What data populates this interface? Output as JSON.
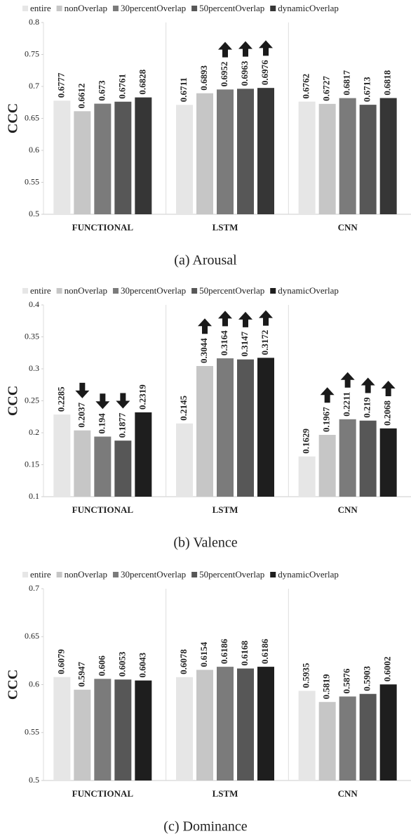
{
  "chart_data": [
    {
      "type": "bar",
      "caption": "(a) Arousal",
      "y_label": "CCC",
      "categories": [
        "FUNCTIONAL",
        "LSTM",
        "CNN"
      ],
      "series": [
        {
          "name": "entire",
          "color": "#e6e6e6",
          "values": [
            0.6777,
            0.6711,
            0.6762
          ],
          "arrows": [
            null,
            null,
            null
          ]
        },
        {
          "name": "nonOverlap",
          "color": "#c6c6c6",
          "values": [
            0.6612,
            0.6893,
            0.6727
          ],
          "arrows": [
            null,
            null,
            null
          ]
        },
        {
          "name": "30percentOverlap",
          "color": "#7b7b7b",
          "values": [
            0.673,
            0.6952,
            0.6817
          ],
          "arrows": [
            null,
            "up",
            null
          ]
        },
        {
          "name": "50percentOverlap",
          "color": "#575757",
          "values": [
            0.6761,
            0.6963,
            0.6713
          ],
          "arrows": [
            null,
            "up",
            null
          ]
        },
        {
          "name": "dynamicOverlap",
          "color": "#363636",
          "values": [
            0.6828,
            0.6976,
            0.6818
          ],
          "arrows": [
            null,
            "up",
            null
          ]
        }
      ],
      "ylim": [
        0.5,
        0.8
      ],
      "yticks": [
        0.5,
        0.55,
        0.6,
        0.65,
        0.7,
        0.75,
        0.8
      ]
    },
    {
      "type": "bar",
      "caption": "(b) Valence",
      "y_label": "CCC",
      "categories": [
        "FUNCTIONAL",
        "LSTM",
        "CNN"
      ],
      "series": [
        {
          "name": "entire",
          "color": "#e6e6e6",
          "values": [
            0.2285,
            0.2145,
            0.1629
          ],
          "arrows": [
            null,
            null,
            null
          ]
        },
        {
          "name": "nonOverlap",
          "color": "#c6c6c6",
          "values": [
            0.2037,
            0.3044,
            0.1967
          ],
          "arrows": [
            "down",
            "up",
            "up"
          ]
        },
        {
          "name": "30percentOverlap",
          "color": "#7b7b7b",
          "values": [
            0.194,
            0.3164,
            0.2211
          ],
          "arrows": [
            "down",
            "up",
            "up"
          ]
        },
        {
          "name": "50percentOverlap",
          "color": "#575757",
          "values": [
            0.1877,
            0.3147,
            0.219
          ],
          "arrows": [
            "down",
            "up",
            "up"
          ]
        },
        {
          "name": "dynamicOverlap",
          "color": "#1e1e1e",
          "values": [
            0.2319,
            0.3172,
            0.2068
          ],
          "arrows": [
            null,
            "up",
            "up"
          ]
        }
      ],
      "ylim": [
        0.1,
        0.4
      ],
      "yticks": [
        0.1,
        0.15,
        0.2,
        0.25,
        0.3,
        0.35,
        0.4
      ]
    },
    {
      "type": "bar",
      "caption": "(c) Dominance",
      "y_label": "CCC",
      "categories": [
        "FUNCTIONAL",
        "LSTM",
        "CNN"
      ],
      "series": [
        {
          "name": "entire",
          "color": "#e6e6e6",
          "values": [
            0.6079,
            0.6078,
            0.5935
          ]
        },
        {
          "name": "nonOverlap",
          "color": "#c6c6c6",
          "values": [
            0.5947,
            0.6154,
            0.5819
          ]
        },
        {
          "name": "30percentOverlap",
          "color": "#7b7b7b",
          "values": [
            0.606,
            0.6186,
            0.5876
          ]
        },
        {
          "name": "50percentOverlap",
          "color": "#575757",
          "values": [
            0.6053,
            0.6168,
            0.5903
          ]
        },
        {
          "name": "dynamicOverlap",
          "color": "#1e1e1e",
          "values": [
            0.6043,
            0.6186,
            0.6002
          ]
        }
      ],
      "ylim": [
        0.5,
        0.7
      ],
      "yticks": [
        0.5,
        0.55,
        0.6,
        0.65,
        0.7
      ]
    }
  ]
}
